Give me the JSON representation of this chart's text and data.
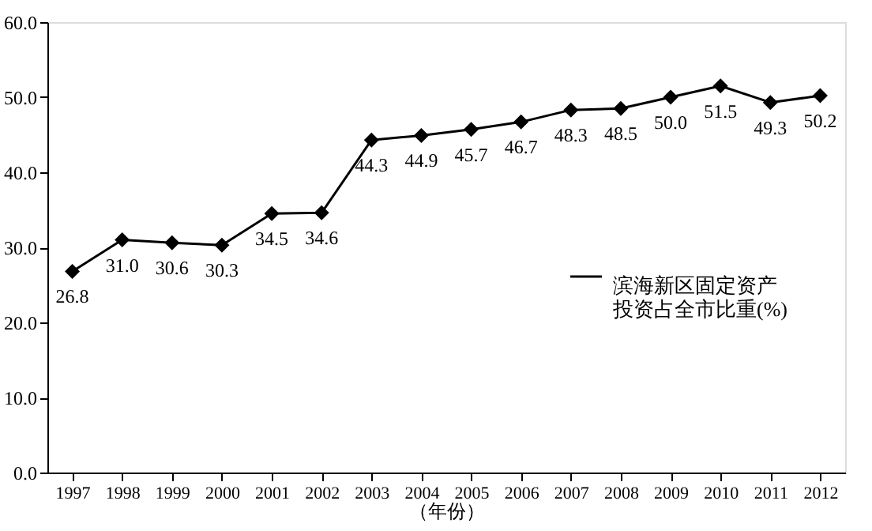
{
  "chart_data": {
    "type": "line",
    "xlabel": "（年份）",
    "categories": [
      "1997",
      "1998",
      "1999",
      "2000",
      "2001",
      "2002",
      "2003",
      "2004",
      "2005",
      "2006",
      "2007",
      "2008",
      "2009",
      "2010",
      "2011",
      "2012"
    ],
    "series": [
      {
        "name": "滨海新区固定资产投资占全市比重(%)",
        "color": "#000000",
        "values": [
          26.8,
          31.0,
          30.6,
          30.3,
          34.5,
          34.6,
          44.3,
          44.9,
          45.7,
          46.7,
          48.3,
          48.5,
          50.0,
          51.5,
          49.3,
          50.2
        ],
        "value_labels": [
          "26.8",
          "31.0",
          "30.6",
          "30.3",
          "34.5",
          "34.6",
          "44.3",
          "44.9",
          "45.7",
          "46.7",
          "48.3",
          "48.5",
          "50.0",
          "51.5",
          "49.3",
          "50.2"
        ]
      }
    ],
    "ylim": [
      0,
      60
    ],
    "yticks": [
      {
        "value": 0,
        "label": "0.0"
      },
      {
        "value": 10,
        "label": "10.0"
      },
      {
        "value": 20,
        "label": "20.0"
      },
      {
        "value": 30,
        "label": "30.0"
      },
      {
        "value": 40,
        "label": "40.0"
      },
      {
        "value": 50,
        "label": "50.0"
      },
      {
        "value": 60,
        "label": "60.0"
      }
    ],
    "marker": "diamond",
    "line_style": "solid",
    "legend": "right"
  }
}
